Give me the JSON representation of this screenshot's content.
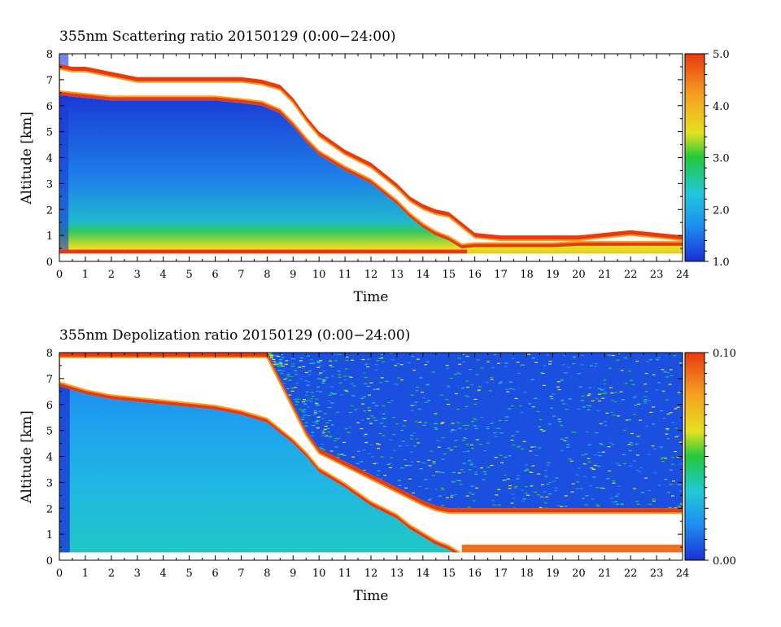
{
  "chart_data": [
    {
      "type": "heatmap",
      "title": "355nm Scattering ratio  20150129 (0:00−24:00)",
      "xlabel": "Time",
      "ylabel": "Altitude [km]",
      "xlim": [
        0,
        24
      ],
      "ylim": [
        0,
        8
      ],
      "xticks": [
        "0",
        "1",
        "2",
        "3",
        "4",
        "5",
        "6",
        "7",
        "8",
        "9",
        "10",
        "11",
        "12",
        "13",
        "14",
        "15",
        "16",
        "17",
        "18",
        "19",
        "20",
        "21",
        "22",
        "23",
        "24"
      ],
      "yticks": [
        "0",
        "1",
        "2",
        "3",
        "4",
        "5",
        "6",
        "7",
        "8"
      ],
      "colorbar": {
        "min": 1.0,
        "max": 5.0,
        "ticks": [
          "1.0",
          "2.0",
          "3.0",
          "4.0",
          "5.0"
        ],
        "tick_values": [
          1,
          2,
          3,
          4,
          5
        ]
      },
      "colormap": [
        "#1a2fd6",
        "#1e8ef0",
        "#20c8d8",
        "#22c83a",
        "#e6e020",
        "#f5a020",
        "#e83a10"
      ],
      "cloud_top_km": [
        [
          0,
          7.6
        ],
        [
          0.5,
          7.5
        ],
        [
          1,
          7.5
        ],
        [
          2,
          7.3
        ],
        [
          3,
          7.1
        ],
        [
          4,
          7.1
        ],
        [
          5,
          7.1
        ],
        [
          6,
          7.1
        ],
        [
          7,
          7.1
        ],
        [
          7.8,
          7.0
        ],
        [
          8.5,
          6.8
        ],
        [
          9,
          6.3
        ],
        [
          9.5,
          5.6
        ],
        [
          10,
          5.0
        ],
        [
          11,
          4.3
        ],
        [
          12,
          3.8
        ],
        [
          12.5,
          3.4
        ],
        [
          13,
          3.0
        ],
        [
          13.5,
          2.5
        ],
        [
          14,
          2.2
        ],
        [
          14.5,
          2.0
        ],
        [
          15,
          1.9
        ],
        [
          15.5,
          1.5
        ],
        [
          16,
          1.1
        ],
        [
          17,
          1.0
        ],
        [
          18,
          1.0
        ],
        [
          19,
          1.0
        ],
        [
          20,
          1.0
        ],
        [
          21,
          1.1
        ],
        [
          22,
          1.2
        ],
        [
          23,
          1.1
        ],
        [
          24,
          1.0
        ]
      ],
      "cloud_base_km": [
        [
          0,
          6.4
        ],
        [
          1,
          6.3
        ],
        [
          2,
          6.2
        ],
        [
          3,
          6.2
        ],
        [
          4,
          6.2
        ],
        [
          5,
          6.2
        ],
        [
          6,
          6.2
        ],
        [
          7,
          6.1
        ],
        [
          7.8,
          6.0
        ],
        [
          8.5,
          5.7
        ],
        [
          9,
          5.2
        ],
        [
          9.5,
          4.6
        ],
        [
          10,
          4.1
        ],
        [
          11,
          3.5
        ],
        [
          12,
          3.0
        ],
        [
          12.5,
          2.6
        ],
        [
          13,
          2.2
        ],
        [
          13.5,
          1.7
        ],
        [
          14,
          1.3
        ],
        [
          14.5,
          1.0
        ],
        [
          15,
          0.8
        ],
        [
          15.5,
          0.5
        ],
        [
          16,
          0.55
        ],
        [
          17,
          0.55
        ],
        [
          18,
          0.55
        ],
        [
          19,
          0.55
        ],
        [
          20,
          0.6
        ],
        [
          21,
          0.6
        ],
        [
          22,
          0.6
        ],
        [
          23,
          0.6
        ],
        [
          24,
          0.6
        ]
      ]
    },
    {
      "type": "heatmap",
      "title": "355nm Depolization ratio  20150129 (0:00−24:00)",
      "xlabel": "Time",
      "ylabel": "Altitude [km]",
      "xlim": [
        0,
        24
      ],
      "ylim": [
        0,
        8
      ],
      "xticks": [
        "0",
        "1",
        "2",
        "3",
        "4",
        "5",
        "6",
        "7",
        "8",
        "9",
        "10",
        "11",
        "12",
        "13",
        "14",
        "15",
        "16",
        "17",
        "18",
        "19",
        "20",
        "21",
        "22",
        "23",
        "24"
      ],
      "yticks": [
        "0",
        "1",
        "2",
        "3",
        "4",
        "5",
        "6",
        "7",
        "8"
      ],
      "colorbar": {
        "min": 0.0,
        "max": 0.1,
        "ticks": [
          "0.00",
          "0.10"
        ],
        "tick_values": [
          0,
          0.1
        ]
      },
      "colormap": [
        "#1a2fd6",
        "#1e8ef0",
        "#20c8d8",
        "#22c83a",
        "#e6e020",
        "#f5a020",
        "#e83a10"
      ],
      "cloud_top_km": [
        [
          0,
          8.0
        ],
        [
          2,
          8.0
        ],
        [
          4,
          8.0
        ],
        [
          6,
          8.0
        ],
        [
          7,
          8.0
        ],
        [
          8,
          8.0
        ],
        [
          8.5,
          7.0
        ],
        [
          9,
          6.0
        ],
        [
          9.5,
          5.0
        ],
        [
          10,
          4.3
        ],
        [
          11,
          3.8
        ],
        [
          12,
          3.3
        ],
        [
          13,
          2.8
        ],
        [
          14,
          2.3
        ],
        [
          14.5,
          2.1
        ],
        [
          15,
          2.0
        ],
        [
          15.5,
          2.0
        ],
        [
          16,
          2.0
        ],
        [
          17,
          2.0
        ],
        [
          18,
          2.0
        ],
        [
          19,
          2.0
        ],
        [
          20,
          2.0
        ],
        [
          21,
          2.0
        ],
        [
          22,
          2.0
        ],
        [
          23,
          2.0
        ],
        [
          24,
          2.0
        ]
      ],
      "cloud_base_km": [
        [
          0,
          6.7
        ],
        [
          1,
          6.4
        ],
        [
          2,
          6.2
        ],
        [
          3,
          6.1
        ],
        [
          4,
          6.0
        ],
        [
          5,
          5.9
        ],
        [
          6,
          5.8
        ],
        [
          7,
          5.6
        ],
        [
          8,
          5.3
        ],
        [
          8.5,
          4.9
        ],
        [
          9,
          4.5
        ],
        [
          9.5,
          4.0
        ],
        [
          10,
          3.4
        ],
        [
          11,
          2.8
        ],
        [
          12,
          2.1
        ],
        [
          13,
          1.6
        ],
        [
          13.5,
          1.2
        ],
        [
          14,
          0.9
        ],
        [
          14.5,
          0.6
        ],
        [
          15,
          0.4
        ],
        [
          15.5,
          0.1
        ],
        [
          16,
          0.05
        ],
        [
          24,
          0.05
        ]
      ]
    }
  ]
}
